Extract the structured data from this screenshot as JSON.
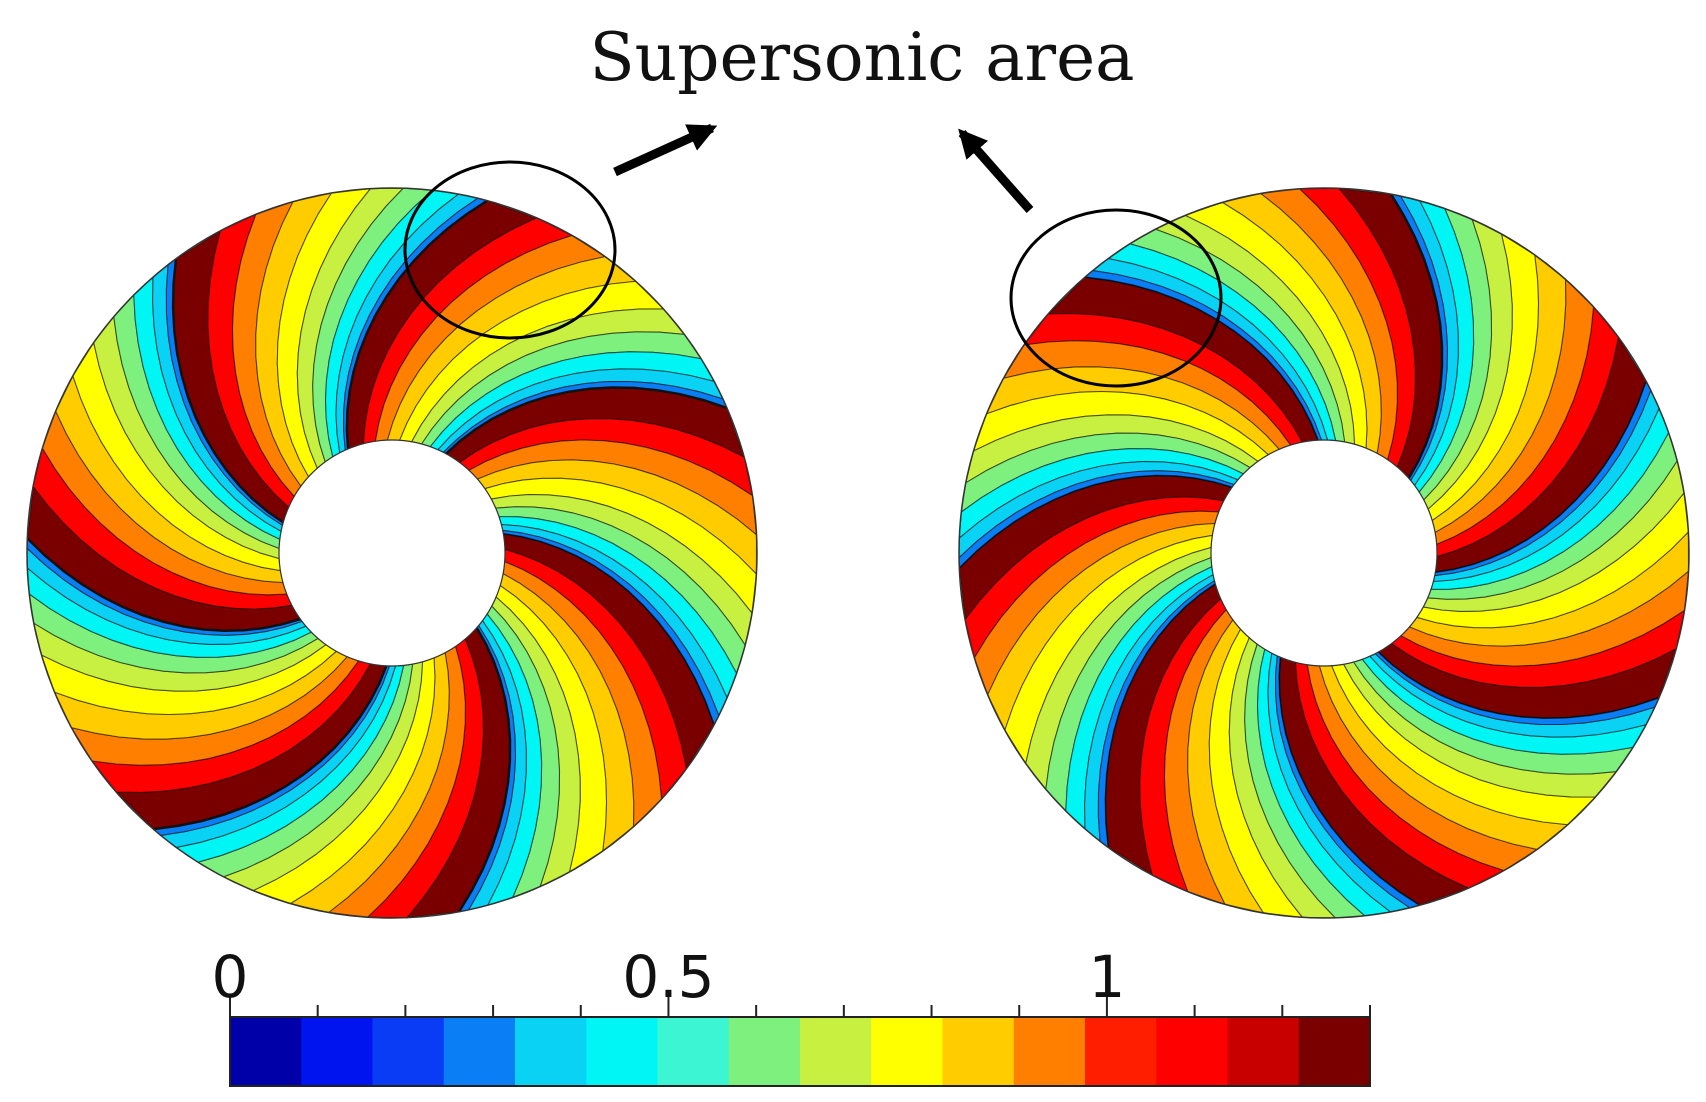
{
  "annotation": {
    "label": "Supersonic area"
  },
  "colorbar": {
    "tick_labels": [
      "0",
      "0.5",
      "1"
    ],
    "tick_values": [
      0,
      0.5,
      1
    ],
    "range": [
      0,
      1.3
    ],
    "colors": [
      "#0000a8",
      "#0014f0",
      "#0a3cf5",
      "#0a7ef5",
      "#0ad2f5",
      "#00f5f5",
      "#3cf5d2",
      "#7ef07e",
      "#c8f040",
      "#ffff00",
      "#ffcc00",
      "#ff8000",
      "#ff1e00",
      "#ff0000",
      "#c80000",
      "#7a0000"
    ]
  },
  "rotors": [
    {
      "name": "left-rotor",
      "blade_count": 7,
      "rotation": -10,
      "mirror": false
    },
    {
      "name": "right-rotor",
      "blade_count": 7,
      "rotation": 10,
      "mirror": true
    }
  ]
}
